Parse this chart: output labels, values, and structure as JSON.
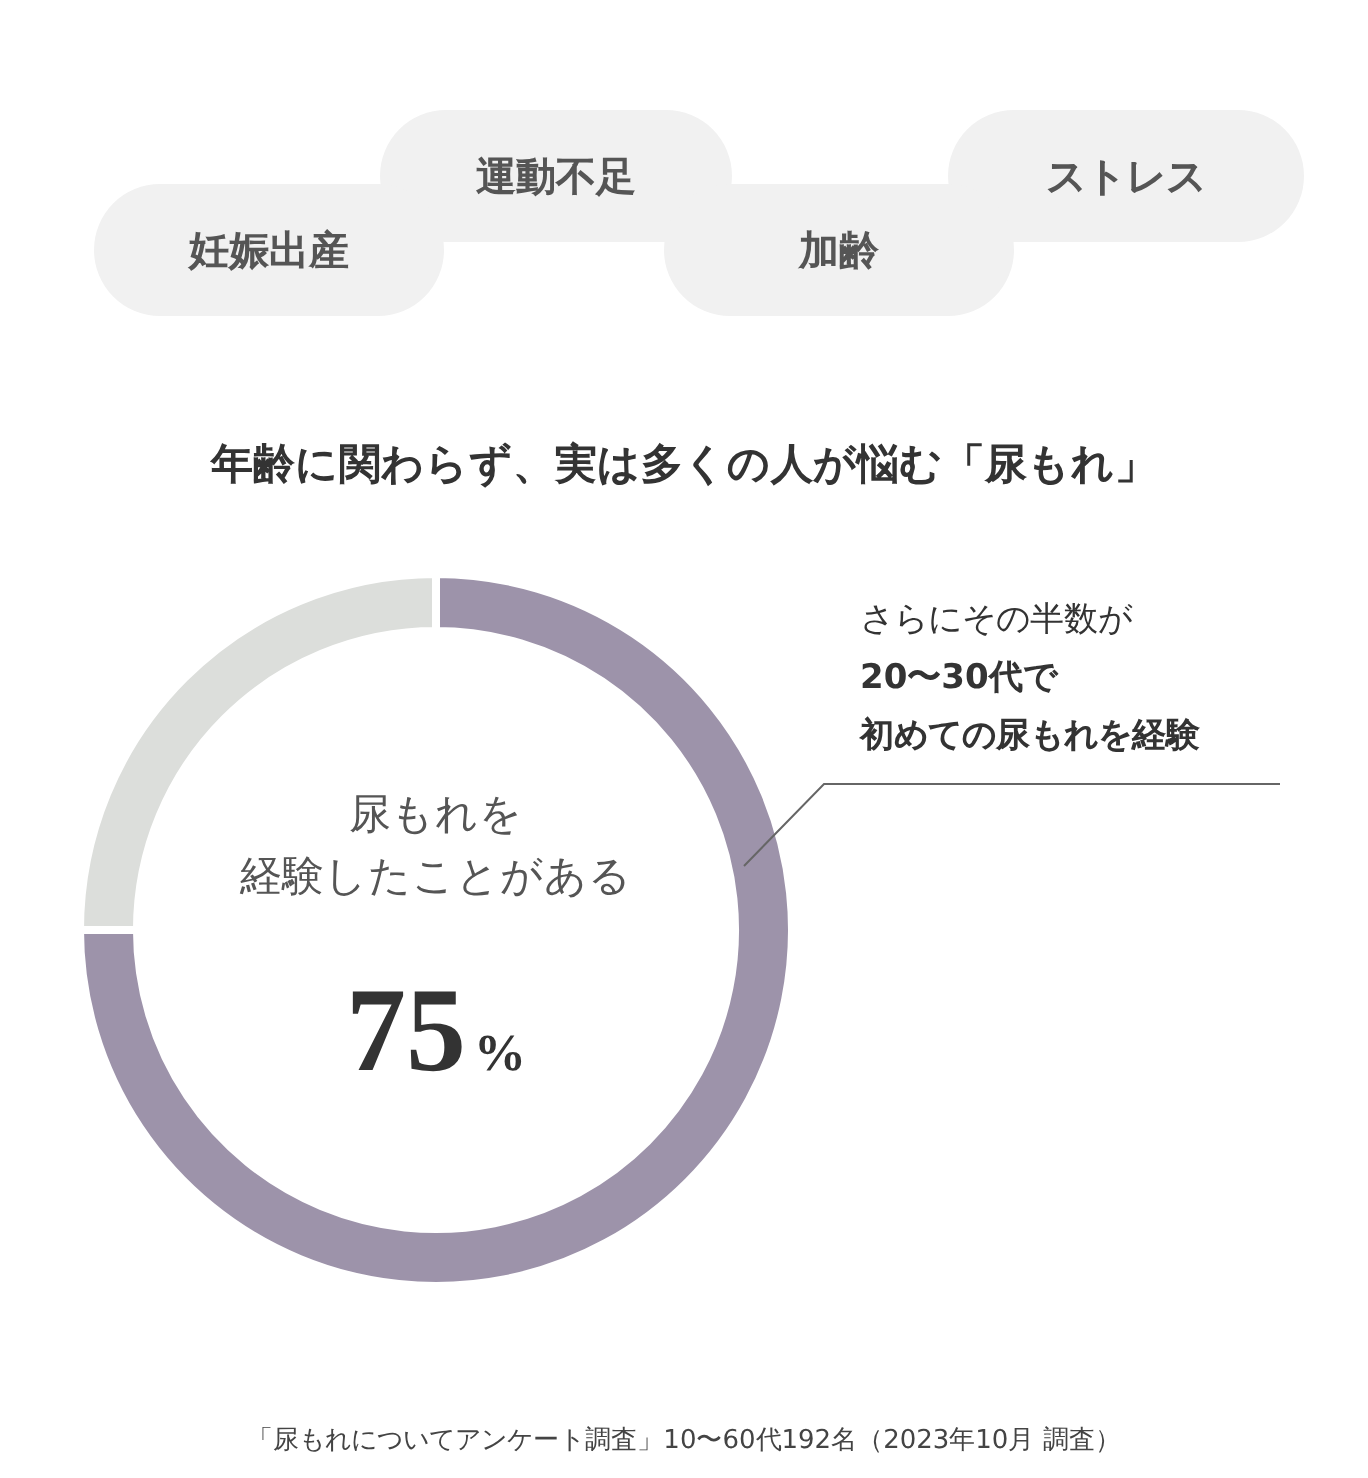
{
  "chart_data": {
    "type": "donut",
    "title": "年齢に関わらず、実は多くの人が悩む「尿もれ」",
    "categories": [
      null,
      null
    ],
    "values": [
      75,
      25
    ],
    "colors": [
      "#9d93aa",
      "#dcdedb"
    ],
    "value_labels": [
      "75%",
      null
    ],
    "legend": false,
    "annotations": [
      "妊娠出産",
      "運動不足",
      "加齢",
      "ストレス",
      "尿もれを",
      "経験したことがある",
      "さらにその半数が",
      "20〜30代で",
      "初めての尿もれを経験",
      "「尿もれについてアンケート調査」10〜60代192名（2023年10月 調査）"
    ]
  }
}
